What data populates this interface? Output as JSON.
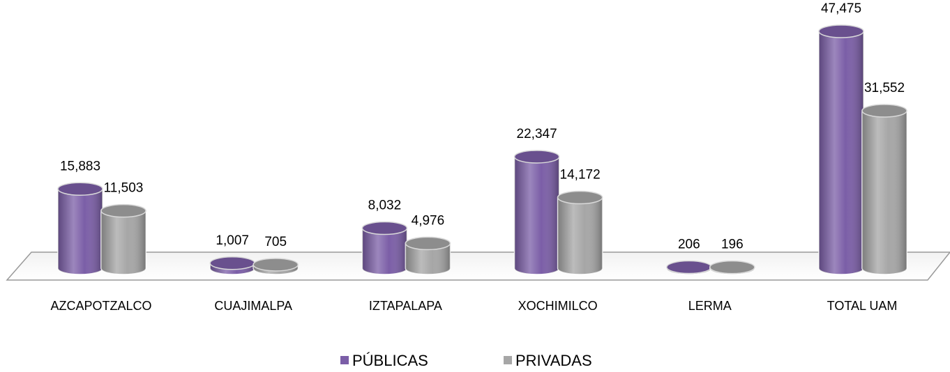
{
  "chart_data": {
    "type": "cylinder",
    "categories": [
      "AZCAPOTZALCO",
      "CUAJIMALPA",
      "IZTAPALAPA",
      "XOCHIMILCO",
      "LERMA",
      "TOTAL UAM"
    ],
    "series": [
      {
        "name": "PÚBLICAS",
        "color": "#7b5ea7",
        "values": [
          15883,
          1007,
          8032,
          22347,
          206,
          47475
        ],
        "value_labels": [
          "15,883",
          "1,007",
          "8,032",
          "22,347",
          "206",
          "47,475"
        ]
      },
      {
        "name": "PRIVADAS",
        "color": "#a6a6a6",
        "values": [
          11503,
          705,
          4976,
          14172,
          196,
          31552
        ],
        "value_labels": [
          "11,503",
          "705",
          "4,976",
          "14,172",
          "196",
          "31,552"
        ]
      }
    ],
    "legend": "bottom"
  }
}
